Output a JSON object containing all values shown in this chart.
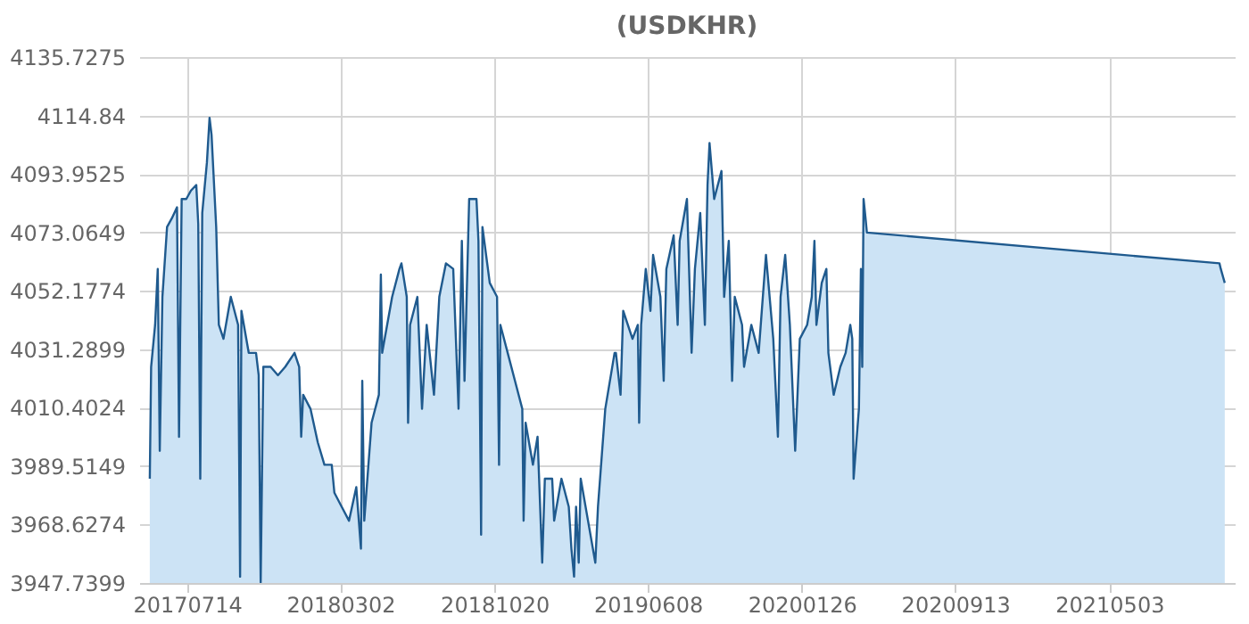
{
  "chart_data": {
    "type": "area",
    "title": "(USDKHR)",
    "xlim": [
      "2017-05-03",
      "2021-11-08"
    ],
    "xticks": [
      {
        "value": "2017-07-14",
        "label": "20170714"
      },
      {
        "value": "2018-03-02",
        "label": "20180302"
      },
      {
        "value": "2018-10-20",
        "label": "20181020"
      },
      {
        "value": "2019-06-08",
        "label": "20190608"
      },
      {
        "value": "2020-01-26",
        "label": "20200126"
      },
      {
        "value": "2020-09-13",
        "label": "20200913"
      },
      {
        "value": "2021-05-03",
        "label": "20210503"
      }
    ],
    "ylim": [
      3947.7399,
      4135.7275
    ],
    "yticks": [
      3947.7399,
      3968.6274,
      3989.5149,
      4010.4024,
      4031.2899,
      4052.1774,
      4073.0649,
      4093.9525,
      4114.84,
      4135.7275
    ],
    "grid": true,
    "series": [
      {
        "color": "#1f5a8e",
        "x": [
          "2017-05-19",
          "2017-05-21",
          "2017-05-27",
          "2017-05-31",
          "2017-06-03",
          "2017-06-07",
          "2017-06-14",
          "2017-06-21",
          "2017-06-29",
          "2017-07-02",
          "2017-07-06",
          "2017-07-13",
          "2017-07-20",
          "2017-07-28",
          "2017-07-31",
          "2017-08-03",
          "2017-08-06",
          "2017-08-13",
          "2017-08-17",
          "2017-08-20",
          "2017-08-27",
          "2017-08-31",
          "2017-09-07",
          "2017-09-18",
          "2017-09-29",
          "2017-10-02",
          "2017-10-04",
          "2017-10-15",
          "2017-10-26",
          "2017-10-30",
          "2017-11-02",
          "2017-11-06",
          "2017-11-17",
          "2017-11-28",
          "2017-12-09",
          "2017-12-23",
          "2017-12-30",
          "2018-01-02",
          "2018-01-05",
          "2018-01-16",
          "2018-01-27",
          "2018-02-06",
          "2018-02-17",
          "2018-02-21",
          "2018-03-04",
          "2018-03-15",
          "2018-03-26",
          "2018-04-02",
          "2018-04-04",
          "2018-04-07",
          "2018-04-18",
          "2018-04-29",
          "2018-05-02",
          "2018-05-04",
          "2018-05-19",
          "2018-05-30",
          "2018-06-02",
          "2018-06-10",
          "2018-06-12",
          "2018-06-15",
          "2018-06-26",
          "2018-07-03",
          "2018-07-10",
          "2018-07-21",
          "2018-07-29",
          "2018-08-08",
          "2018-08-19",
          "2018-08-27",
          "2018-09-01",
          "2018-09-05",
          "2018-09-12",
          "2018-09-23",
          "2018-09-26",
          "2018-09-30",
          "2018-10-02",
          "2018-10-13",
          "2018-10-24",
          "2018-10-27",
          "2018-10-29",
          "2018-11-09",
          "2018-11-20",
          "2018-12-01",
          "2018-12-03",
          "2018-12-06",
          "2018-12-17",
          "2018-12-24",
          "2018-12-31",
          "2019-01-04",
          "2019-01-15",
          "2019-01-18",
          "2019-01-29",
          "2019-02-09",
          "2019-02-13",
          "2019-02-17",
          "2019-02-20",
          "2019-02-24",
          "2019-02-27",
          "2019-03-10",
          "2019-03-21",
          "2019-03-25",
          "2019-04-05",
          "2019-04-19",
          "2019-04-21",
          "2019-04-28",
          "2019-05-02",
          "2019-05-16",
          "2019-05-24",
          "2019-05-26",
          "2019-05-29",
          "2019-06-05",
          "2019-06-12",
          "2019-06-16",
          "2019-06-27",
          "2019-07-02",
          "2019-07-06",
          "2019-07-17",
          "2019-07-23",
          "2019-07-26",
          "2019-08-06",
          "2019-08-13",
          "2019-08-18",
          "2019-08-26",
          "2019-09-02",
          "2019-09-06",
          "2019-09-09",
          "2019-09-16",
          "2019-09-27",
          "2019-10-01",
          "2019-10-08",
          "2019-10-13",
          "2019-10-17",
          "2019-10-28",
          "2019-10-31",
          "2019-11-11",
          "2019-11-22",
          "2019-12-03",
          "2019-12-14",
          "2019-12-21",
          "2019-12-25",
          "2020-01-01",
          "2020-01-08",
          "2020-01-16",
          "2020-01-23",
          "2020-02-03",
          "2020-02-10",
          "2020-02-14",
          "2020-02-17",
          "2020-02-25",
          "2020-03-03",
          "2020-03-06",
          "2020-03-14",
          "2020-03-24",
          "2020-04-01",
          "2020-04-08",
          "2020-04-11",
          "2020-04-13",
          "2020-04-21",
          "2020-04-24",
          "2020-04-26",
          "2020-04-28",
          "2020-05-01",
          "2020-05-03",
          "2021-10-16",
          "2021-10-18",
          "2021-10-24"
        ],
        "values": [
          3985,
          4025,
          4040,
          4060,
          3995,
          4050,
          4075,
          4078,
          4082,
          4000,
          4085,
          4085,
          4088,
          4090,
          4076,
          3985,
          4080,
          4098,
          4114,
          4108,
          4075,
          4040,
          4035,
          4050,
          4040,
          3950,
          4045,
          4030,
          4030,
          4022,
          3948,
          4025,
          4025,
          4022,
          4025,
          4030,
          4025,
          4000,
          4015,
          4010,
          3998,
          3990,
          3990,
          3980,
          3975,
          3970,
          3982,
          3960,
          4020,
          3970,
          4005,
          4015,
          4058,
          4030,
          4050,
          4060,
          4062,
          4050,
          4005,
          4040,
          4050,
          4010,
          4040,
          4015,
          4050,
          4062,
          4060,
          4010,
          4070,
          4020,
          4085,
          4085,
          4070,
          3965,
          4075,
          4055,
          4050,
          3990,
          4040,
          4030,
          4020,
          4010,
          3970,
          4005,
          3990,
          4000,
          3955,
          3985,
          3985,
          3970,
          3985,
          3975,
          3960,
          3950,
          3975,
          3955,
          3985,
          3970,
          3955,
          3975,
          4010,
          4030,
          4030,
          4015,
          4045,
          4035,
          4040,
          4005,
          4040,
          4060,
          4045,
          4065,
          4050,
          4020,
          4060,
          4072,
          4040,
          4070,
          4085,
          4030,
          4060,
          4080,
          4040,
          4090,
          4105,
          4085,
          4095,
          4050,
          4070,
          4020,
          4050,
          4040,
          4025,
          4040,
          4030,
          4065,
          4035,
          4000,
          4050,
          4065,
          4040,
          3995,
          4035,
          4040,
          4050,
          4070,
          4040,
          4055,
          4060,
          4030,
          4015,
          4025,
          4030,
          4040,
          4035,
          3985,
          4010,
          4060,
          4025,
          4085,
          4078,
          4073,
          4062,
          4060,
          4055
        ]
      }
    ]
  }
}
